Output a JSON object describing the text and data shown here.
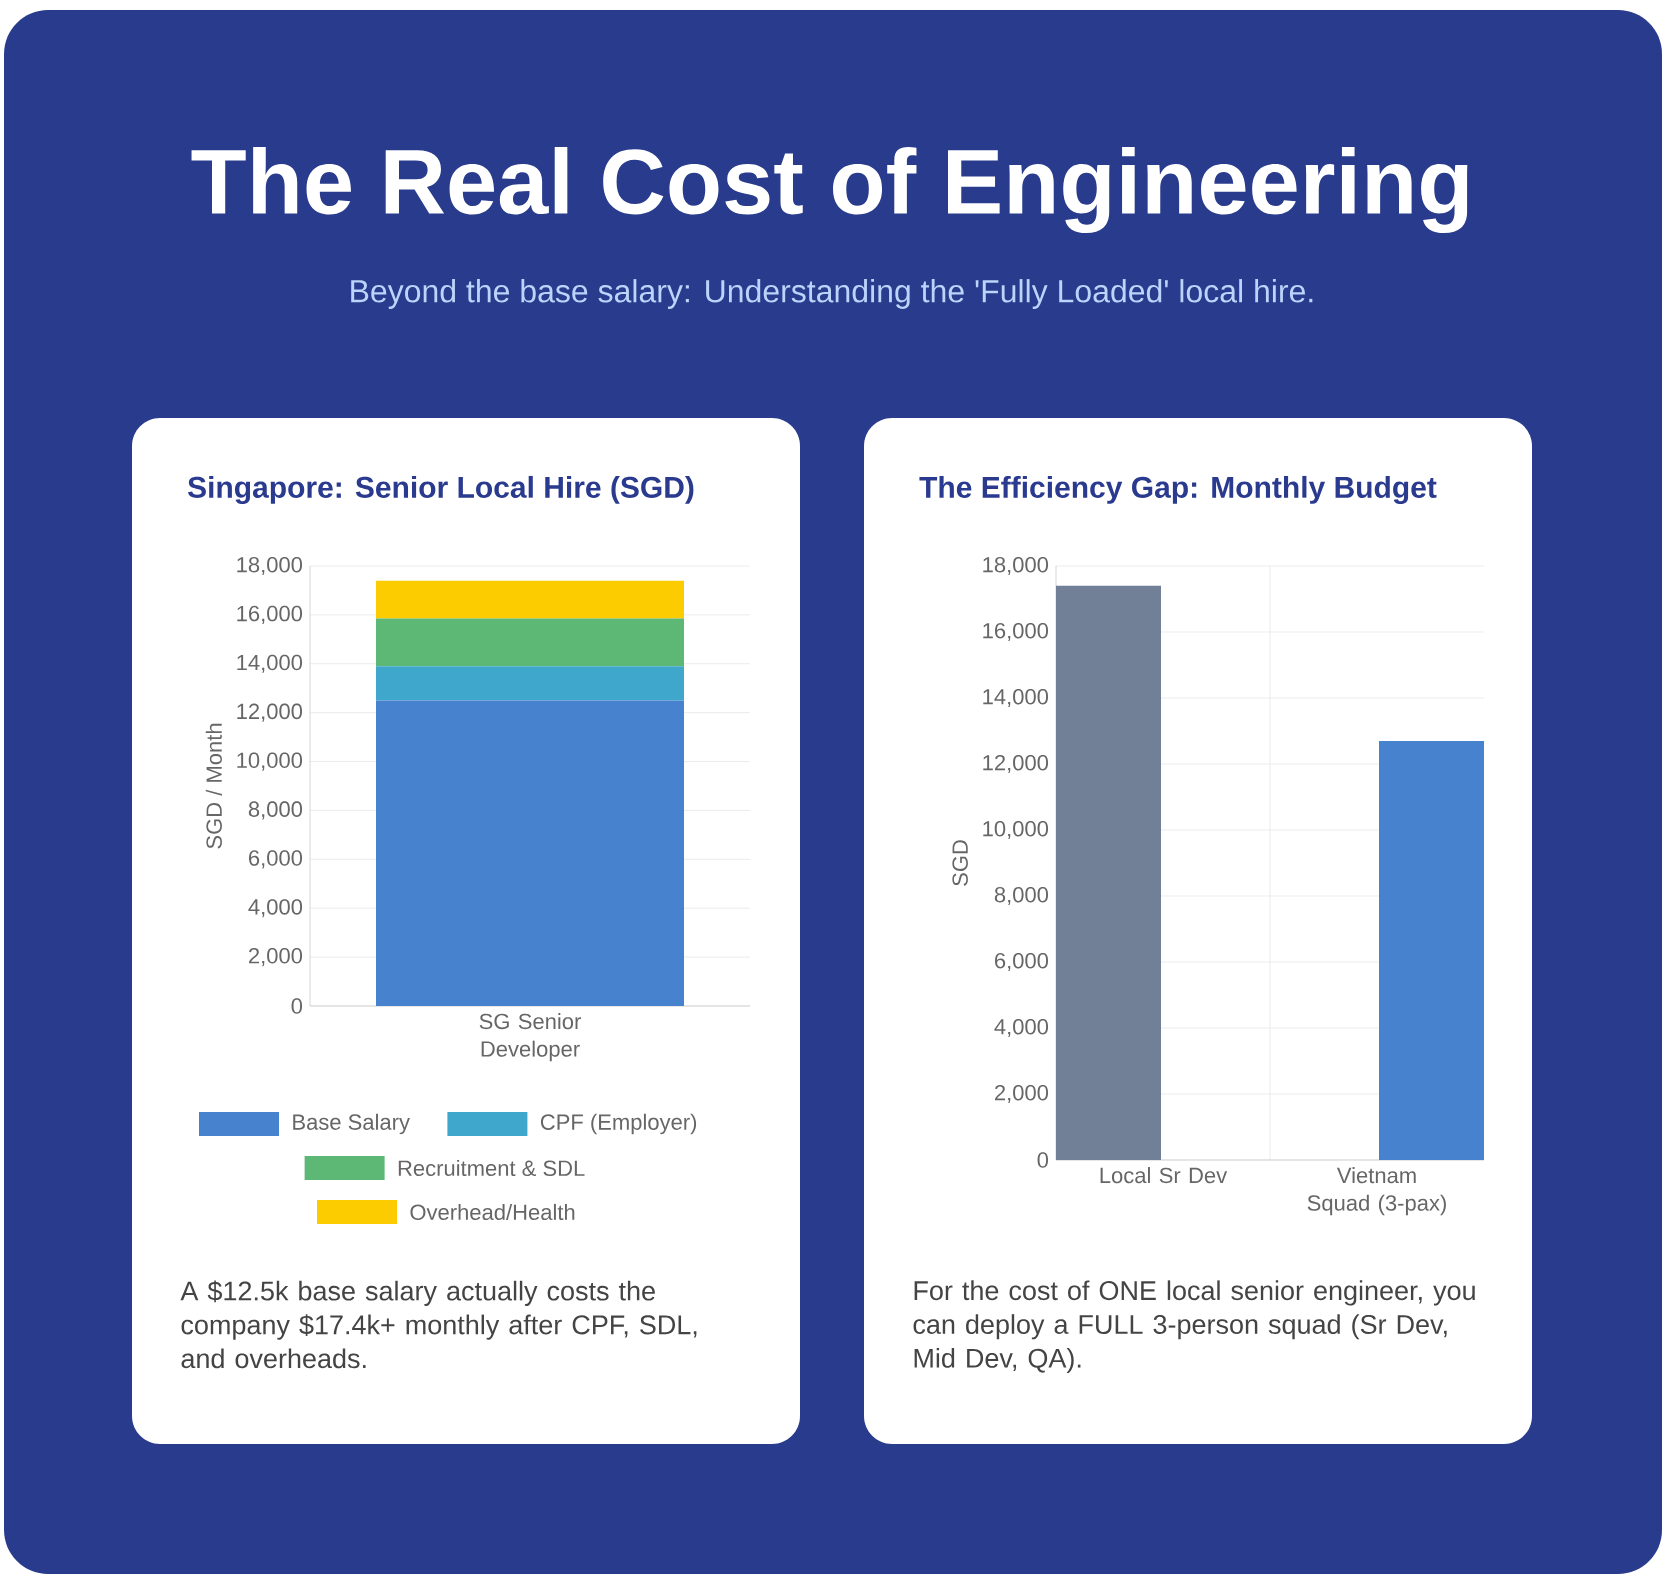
{
  "chart_data": [
    {
      "type": "other",
      "title": "The Real Cost of Engineering",
      "subtitle": "Beyond the base salary: Understanding the 'Fully Loaded' local hire."
    },
    {
      "type": "bar",
      "title": "Singapore: Senior Local Hire (SGD)",
      "ylabel": "SGD / Month",
      "categories": [
        "SG Senior Developer"
      ],
      "stacked": true,
      "series": [
        {
          "name": "Base Salary",
          "color": "#4682cd",
          "values": [
            12500
          ]
        },
        {
          "name": "CPF (Employer)",
          "color": "#3fa7cc",
          "values": [
            1400
          ]
        },
        {
          "name": "Recruitment & SDL",
          "color": "#5db876",
          "values": [
            1950
          ]
        },
        {
          "name": "Overhead/Health",
          "color": "#fccb00",
          "values": [
            1550
          ]
        }
      ],
      "ylim": [
        0,
        18000
      ],
      "yticks": [
        0,
        {
          "value": 2000,
          "label": "2,000"
        },
        {
          "value": 4000,
          "label": "4,000"
        },
        {
          "value": 6000,
          "label": "6,000"
        },
        {
          "value": 8000,
          "label": "8,000"
        },
        {
          "value": 10000,
          "label": "10,000"
        },
        {
          "value": 12000,
          "label": "12,000"
        },
        {
          "value": 14000,
          "label": "14,000"
        },
        {
          "value": 16000,
          "label": "16,000"
        },
        {
          "value": 18000,
          "label": "18,000"
        }
      ],
      "grid": "y",
      "legend": "bottom",
      "annotations": [
        "A $12.5k base salary actually costs the company $17.4k+ monthly after CPF, SDL, and overheads."
      ]
    },
    {
      "type": "bar",
      "title": "The Efficiency Gap: Monthly Budget",
      "ylabel": "SGD",
      "categories": [
        "Local Sr Dev",
        "Vietnam Squad (3-pax)"
      ],
      "values": [
        17400,
        12700
      ],
      "colors": [
        "#718096",
        "#4682cd"
      ],
      "ylim": [
        0,
        18000
      ],
      "yticks": [
        0,
        {
          "value": 2000,
          "label": "2,000"
        },
        {
          "value": 4000,
          "label": "4,000"
        },
        {
          "value": 6000,
          "label": "6,000"
        },
        {
          "value": 8000,
          "label": "8,000"
        },
        {
          "value": 10000,
          "label": "10,000"
        },
        {
          "value": 12000,
          "label": "12,000"
        },
        {
          "value": 14000,
          "label": "14,000"
        },
        {
          "value": 16000,
          "label": "16,000"
        },
        {
          "value": 18000,
          "label": "18,000"
        }
      ],
      "grid": true,
      "annotations": [
        "For the cost of ONE local senior engineer, you can deploy a FULL 3-person squad (Sr Dev, Mid Dev, QA)."
      ]
    }
  ]
}
